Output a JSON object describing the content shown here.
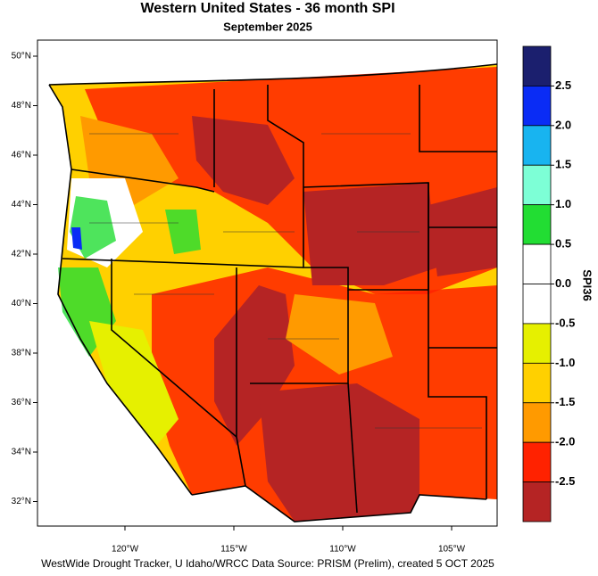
{
  "header": {
    "title": "Western United States - 36 month SPI",
    "subtitle": "September 2025"
  },
  "map": {
    "lat_labels": [
      "50°N",
      "48°N",
      "46°N",
      "44°N",
      "42°N",
      "40°N",
      "38°N",
      "36°N",
      "34°N",
      "32°N"
    ],
    "lon_labels": [
      "120°W",
      "115°W",
      "110°W",
      "105°W"
    ]
  },
  "colorbar": {
    "title": "SPI36",
    "colors": [
      "#1b1f6e",
      "#0a2cf5",
      "#18b4f0",
      "#7dffd6",
      "#22dd33",
      "#ffffff",
      "#ffffff",
      "#e6f000",
      "#ffd000",
      "#ff9a00",
      "#ff2200",
      "#b52424"
    ],
    "ticks": [
      2.5,
      {
        "value": 2,
        "label": "2.0"
      },
      1.5,
      {
        "value": 1,
        "label": "1.0"
      },
      0.5,
      {
        "value": 0,
        "label": "0.0"
      },
      -0.5,
      {
        "value": -1,
        "label": "-1.0"
      },
      -1.5,
      {
        "value": -2,
        "label": "-2.0"
      },
      -2.5
    ]
  },
  "footer": "WestWide Drought Tracker, U Idaho/WRCC Data Source: PRISM (Prelim), created  5 OCT 2025"
}
